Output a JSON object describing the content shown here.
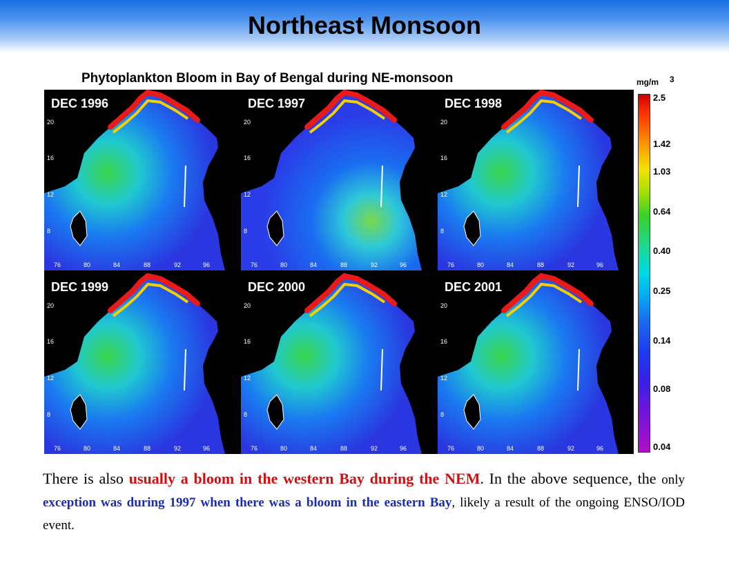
{
  "slide": {
    "title": "Northeast Monsoon",
    "figure_title": "Phytoplankton Bloom in Bay of Bengal during NE-monsoon"
  },
  "colorbar": {
    "unit": "mg/m",
    "unit_exponent": "3",
    "ticks": [
      "2.5",
      "1.42",
      "1.03",
      "0.64",
      "0.40",
      "0.25",
      "0.14",
      "0.08",
      "0.04"
    ]
  },
  "panels": [
    {
      "label": "DEC 1996",
      "bloom": "western",
      "lat_labels": [
        "20",
        "16",
        "12",
        "8"
      ],
      "lon_labels": [
        "76",
        "80",
        "84",
        "88",
        "92",
        "96"
      ]
    },
    {
      "label": "DEC 1997",
      "bloom": "eastern",
      "lat_labels": [
        "20",
        "16",
        "12",
        "8"
      ],
      "lon_labels": [
        "76",
        "80",
        "84",
        "88",
        "92",
        "96"
      ]
    },
    {
      "label": "DEC 1998",
      "bloom": "western",
      "lat_labels": [
        "20",
        "16",
        "12",
        "8"
      ],
      "lon_labels": [
        "76",
        "80",
        "84",
        "88",
        "92",
        "96"
      ]
    },
    {
      "label": "DEC 1999",
      "bloom": "western",
      "lat_labels": [
        "20",
        "16",
        "12",
        "8"
      ],
      "lon_labels": [
        "76",
        "80",
        "84",
        "88",
        "92",
        "96"
      ]
    },
    {
      "label": "DEC 2000",
      "bloom": "western",
      "lat_labels": [
        "20",
        "16",
        "12",
        "8"
      ],
      "lon_labels": [
        "76",
        "80",
        "84",
        "88",
        "92",
        "96"
      ]
    },
    {
      "label": "DEC 2001",
      "bloom": "western",
      "lat_labels": [
        "20",
        "16",
        "12",
        "8"
      ],
      "lon_labels": [
        "76",
        "80",
        "84",
        "88",
        "92",
        "96"
      ]
    }
  ],
  "description": {
    "part1": "There is also ",
    "part2": "usually a bloom in the western Bay during the NEM",
    "part3": ". In the above sequence, the ",
    "part4": "only ",
    "part5": "exception was during 1997 when there was a bloom in the eastern Bay",
    "part6": ", likely a result of the ongoing ENSO/IOD event."
  },
  "colors": {
    "header_blue": "#1a6fe0",
    "highlight_red": "#d01010",
    "highlight_blue": "#1a2db5",
    "land": "#000000",
    "ocean_low": "#1a3cf0",
    "ocean_mid": "#00c8e8",
    "bloom_high": "#e01a1a"
  }
}
